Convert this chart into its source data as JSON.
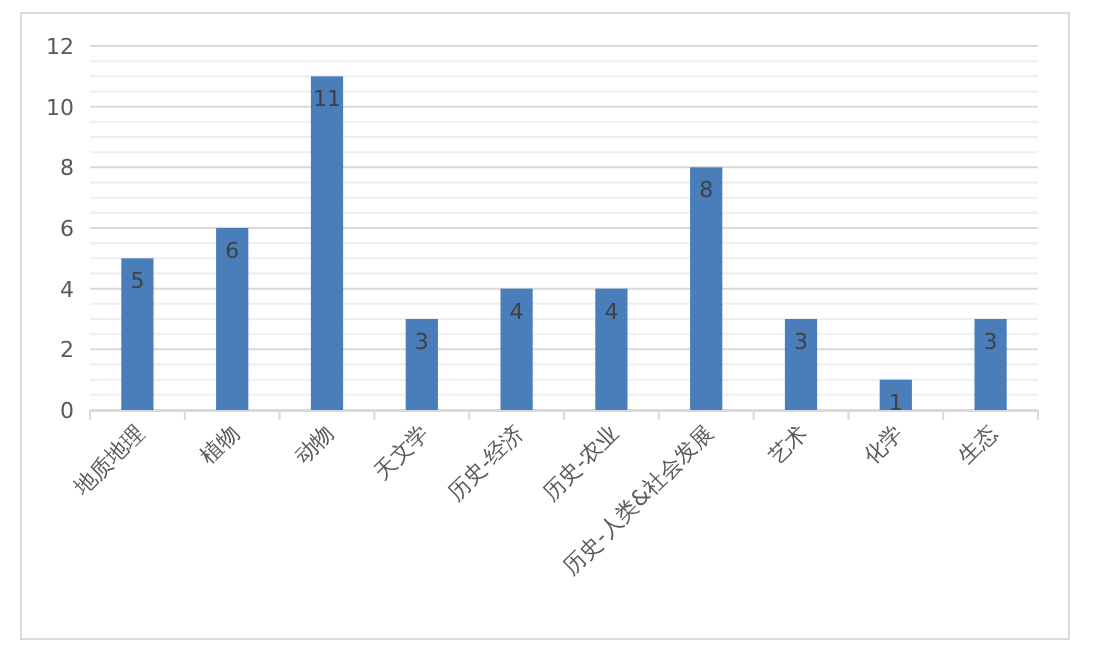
{
  "chart_data": {
    "type": "bar",
    "categories": [
      "地质地理",
      "植物",
      "动物",
      "天文学",
      "历史-经济",
      "历史-农业",
      "历史-人类&社会发展",
      "艺术",
      "化学",
      "生态"
    ],
    "values": [
      5,
      6,
      11,
      3,
      4,
      4,
      8,
      3,
      1,
      3
    ],
    "color": "#4a7ebb",
    "ylim": [
      0,
      12
    ],
    "yticks": [
      0,
      2,
      4,
      6,
      8,
      10,
      12
    ],
    "grid": "y",
    "data_labels": true
  }
}
